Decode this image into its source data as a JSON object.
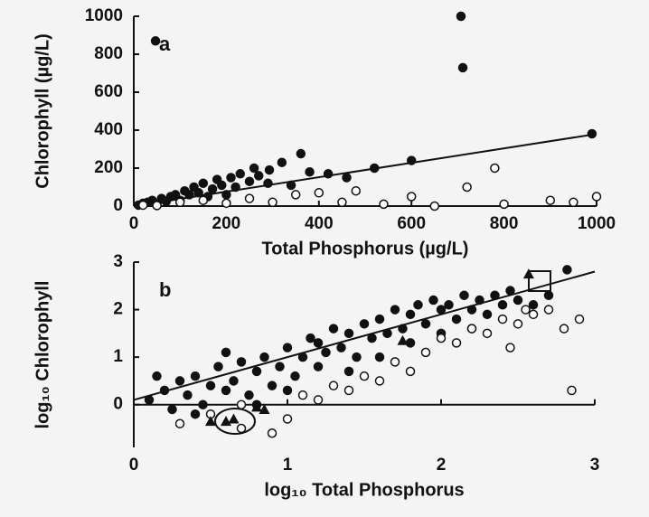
{
  "chart_data": [
    {
      "type": "scatter",
      "panel_label": "a",
      "x_label": "Total Phosphorus (µg/L)",
      "y_label": "Chlorophyll (µg/L)",
      "xlim": [
        0,
        1000
      ],
      "ylim": [
        0,
        1000
      ],
      "xticks": [
        0,
        200,
        400,
        600,
        800,
        1000
      ],
      "yticks": [
        0,
        200,
        400,
        600,
        800,
        1000
      ],
      "series": [
        {
          "marker": "filled",
          "color": "#111111",
          "x": [
            10,
            20,
            30,
            40,
            50,
            60,
            70,
            80,
            90,
            100,
            110,
            120,
            130,
            140,
            150,
            160,
            170,
            180,
            190,
            200,
            210,
            220,
            230,
            250,
            260,
            270,
            290,
            293,
            320,
            340,
            361,
            380,
            420,
            460,
            520,
            600,
            47,
            707,
            711,
            990
          ],
          "values": [
            5,
            15,
            20,
            30,
            10,
            40,
            25,
            50,
            60,
            30,
            80,
            60,
            100,
            70,
            120,
            50,
            90,
            140,
            110,
            60,
            150,
            100,
            170,
            130,
            200,
            160,
            120,
            190,
            230,
            110,
            276,
            180,
            170,
            150,
            200,
            240,
            870,
            1000,
            729,
            381
          ]
        },
        {
          "marker": "open",
          "color": "#111111",
          "x": [
            20,
            50,
            100,
            150,
            200,
            250,
            300,
            350,
            400,
            450,
            480,
            540,
            600,
            650,
            720,
            780,
            800,
            900,
            950,
            1000
          ],
          "values": [
            5,
            3,
            20,
            30,
            15,
            40,
            20,
            60,
            70,
            20,
            80,
            10,
            50,
            0,
            100,
            200,
            10,
            30,
            20,
            50
          ]
        }
      ],
      "fit": {
        "x": [
          0,
          1000
        ],
        "values": [
          0,
          380
        ]
      }
    },
    {
      "type": "scatter",
      "panel_label": "b",
      "x_label": "log₁₀ Total Phosphorus",
      "y_label": "log₁₀ Chlorophyll",
      "xlim": [
        0,
        3
      ],
      "ylim": [
        -0.9,
        3
      ],
      "xticks": [
        0,
        1,
        2,
        3
      ],
      "yticks": [
        0,
        1,
        2,
        3
      ],
      "series": [
        {
          "marker": "filled",
          "color": "#111111",
          "x": [
            0.1,
            0.2,
            0.25,
            0.3,
            0.35,
            0.4,
            0.45,
            0.5,
            0.55,
            0.6,
            0.65,
            0.7,
            0.75,
            0.8,
            0.85,
            0.9,
            0.95,
            1.0,
            1.05,
            1.1,
            1.15,
            1.2,
            1.25,
            1.3,
            1.35,
            1.4,
            1.45,
            1.5,
            1.55,
            1.6,
            1.65,
            1.7,
            1.75,
            1.8,
            1.85,
            1.9,
            1.95,
            2.0,
            2.05,
            2.1,
            2.15,
            2.2,
            2.25,
            2.3,
            2.35,
            2.4,
            2.45,
            2.5,
            2.6,
            2.7,
            0.15,
            0.4,
            0.6,
            0.8,
            1.0,
            1.2,
            1.4,
            1.6,
            1.8,
            2.0,
            2.2,
            2.82
          ],
          "values": [
            0.1,
            0.3,
            -0.1,
            0.5,
            0.2,
            0.6,
            0.0,
            0.4,
            0.8,
            0.3,
            0.5,
            0.9,
            0.2,
            0.7,
            1.0,
            0.4,
            0.8,
            1.2,
            0.6,
            1.0,
            1.4,
            0.8,
            1.1,
            1.6,
            1.2,
            1.5,
            1.0,
            1.7,
            1.4,
            1.8,
            1.5,
            2.0,
            1.6,
            1.9,
            2.1,
            1.7,
            2.2,
            2.0,
            2.1,
            1.8,
            2.3,
            2.0,
            2.2,
            1.9,
            2.3,
            2.1,
            2.4,
            2.2,
            2.1,
            2.3,
            0.6,
            -0.2,
            1.1,
            0.0,
            0.3,
            1.3,
            0.7,
            1.0,
            1.3,
            1.5,
            1.6,
            2.84
          ]
        },
        {
          "marker": "open",
          "color": "#111111",
          "x": [
            0.3,
            0.5,
            0.7,
            0.9,
            1.1,
            1.3,
            1.5,
            1.7,
            1.9,
            2.0,
            2.1,
            2.2,
            2.3,
            2.4,
            2.5,
            2.6,
            2.7,
            2.8,
            2.9,
            1.0,
            1.2,
            1.6,
            1.8,
            2.45,
            2.85,
            2.55,
            0.7,
            1.4
          ],
          "values": [
            -0.4,
            -0.2,
            0.0,
            -0.6,
            0.2,
            0.4,
            0.6,
            0.9,
            1.1,
            1.4,
            1.3,
            1.6,
            1.5,
            1.8,
            1.7,
            1.9,
            2.0,
            1.6,
            1.8,
            -0.3,
            0.1,
            0.5,
            0.7,
            1.2,
            0.3,
            2.0,
            -0.5,
            0.3
          ]
        },
        {
          "marker": "triangle",
          "color": "#111111",
          "x": [
            1.75,
            0.85,
            0.8,
            0.5,
            0.6,
            0.65,
            2.57
          ],
          "values": [
            1.35,
            -0.1,
            -0.05,
            -0.35,
            -0.35,
            -0.3,
            2.75
          ]
        }
      ],
      "fit": {
        "x": [
          0,
          3
        ],
        "values": [
          0.1,
          2.8
        ]
      }
    }
  ]
}
